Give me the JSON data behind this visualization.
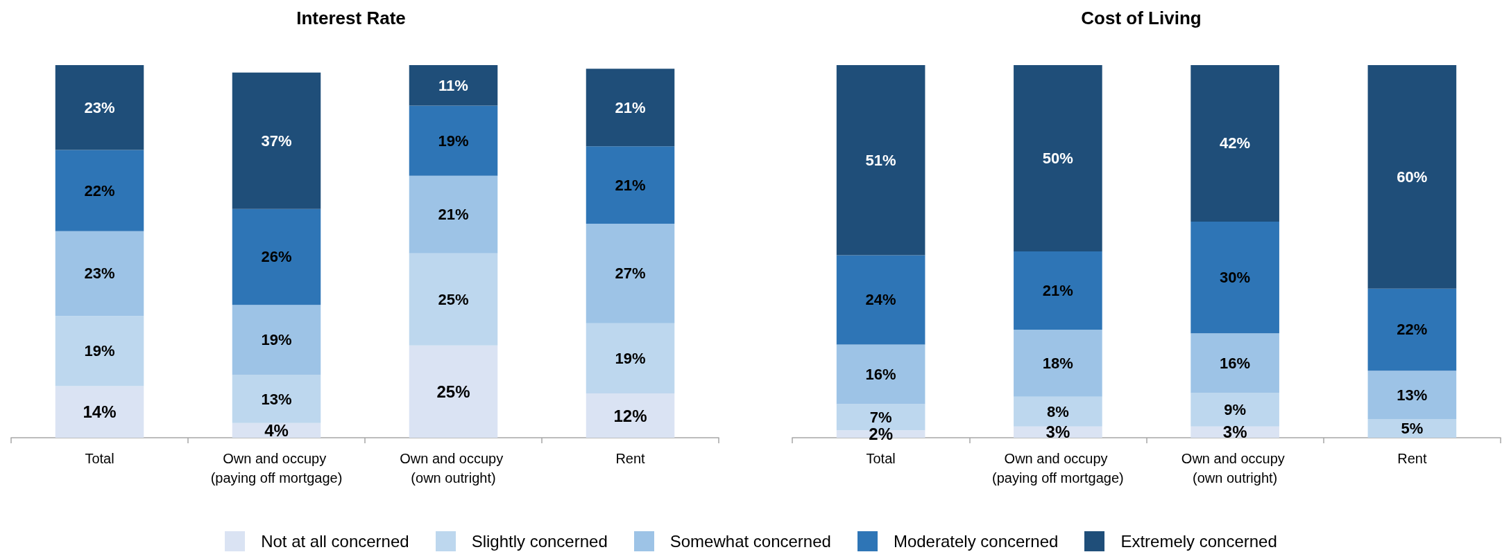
{
  "chart_data": [
    {
      "type": "bar",
      "title": "Interest Rate",
      "stacked": true,
      "tick_labels": "x",
      "legend": "bottom",
      "categories": [
        "Total",
        "Own and occupy (paying off mortgage)",
        "Own and occupy (own outright)",
        "Rent"
      ],
      "series": [
        {
          "name": "Not at all concerned",
          "color": "#dae3f3",
          "values": [
            14,
            4,
            25,
            12
          ],
          "value_labels": [
            "14%",
            "4%",
            "25%",
            "12%"
          ]
        },
        {
          "name": "Slightly concerned",
          "color": "#bdd7ee",
          "values": [
            19,
            13,
            25,
            19
          ],
          "value_labels": [
            "19%",
            "13%",
            "25%",
            "19%"
          ]
        },
        {
          "name": "Somewhat concerned",
          "color": "#9dc3e6",
          "values": [
            23,
            19,
            21,
            27
          ],
          "value_labels": [
            "23%",
            "19%",
            "21%",
            "27%"
          ]
        },
        {
          "name": "Moderately concerned",
          "color": "#2e75b6",
          "values": [
            22,
            26,
            19,
            21
          ],
          "value_labels": [
            "22%",
            "26%",
            "19%",
            "21%"
          ]
        },
        {
          "name": "Extremely concerned",
          "color": "#1f4e79",
          "values": [
            23,
            37,
            11,
            21
          ],
          "value_labels": [
            "23%",
            "37%",
            "11%",
            "21%"
          ]
        }
      ]
    },
    {
      "type": "bar",
      "title": "Cost of Living",
      "stacked": true,
      "tick_labels": "x",
      "legend": "bottom",
      "categories": [
        "Total",
        "Own and occupy (paying off mortgage)",
        "Own and occupy (own outright)",
        "Rent"
      ],
      "series": [
        {
          "name": "Not at all concerned",
          "color": "#dae3f3",
          "values": [
            2,
            3,
            3,
            null
          ],
          "value_labels": [
            "2%",
            "3%",
            "3%",
            null
          ]
        },
        {
          "name": "Slightly concerned",
          "color": "#bdd7ee",
          "values": [
            7,
            8,
            9,
            5
          ],
          "value_labels": [
            "7%",
            "8%",
            "9%",
            "5%"
          ]
        },
        {
          "name": "Somewhat concerned",
          "color": "#9dc3e6",
          "values": [
            16,
            18,
            16,
            13
          ],
          "value_labels": [
            "16%",
            "18%",
            "16%",
            "13%"
          ]
        },
        {
          "name": "Moderately concerned",
          "color": "#2e75b6",
          "values": [
            24,
            21,
            30,
            22
          ],
          "value_labels": [
            "24%",
            "21%",
            "30%",
            "22%"
          ]
        },
        {
          "name": "Extremely concerned",
          "color": "#1f4e79",
          "values": [
            51,
            50,
            42,
            60
          ],
          "value_labels": [
            "51%",
            "50%",
            "42%",
            "60%"
          ]
        }
      ]
    }
  ]
}
